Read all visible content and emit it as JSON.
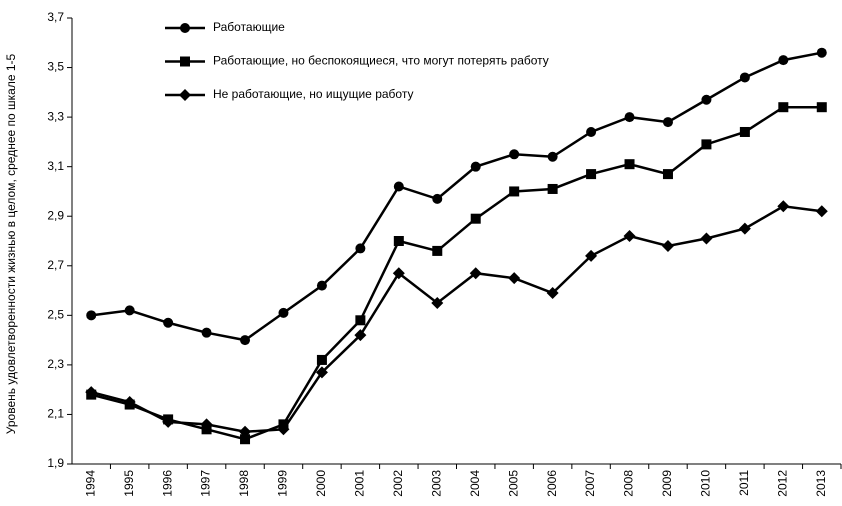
{
  "chart_data": {
    "type": "line",
    "y_label": "Уровень удовлетворенности жизнью в целом, среднее по шкале 1-5",
    "categories": [
      "1994",
      "1995",
      "1996",
      "1997",
      "1998",
      "1999",
      "2000",
      "2001",
      "2002",
      "2003",
      "2004",
      "2005",
      "2006",
      "2007",
      "2008",
      "2009",
      "2010",
      "2011",
      "2012",
      "2013"
    ],
    "series": [
      {
        "name": "Работающие",
        "color": "#000000",
        "marker": "circle",
        "values": [
          2.5,
          2.52,
          2.47,
          2.43,
          2.4,
          2.51,
          2.62,
          2.77,
          3.02,
          2.97,
          3.1,
          3.15,
          3.14,
          3.24,
          3.3,
          3.28,
          3.37,
          3.46,
          3.53,
          3.56
        ]
      },
      {
        "name": "Работающие, но беспокоящиеся, что могут потерять работу",
        "color": "#000000",
        "marker": "square",
        "values": [
          2.18,
          2.14,
          2.08,
          2.04,
          2.0,
          2.06,
          2.32,
          2.48,
          2.8,
          2.76,
          2.89,
          3.0,
          3.01,
          3.07,
          3.11,
          3.07,
          3.19,
          3.24,
          3.34,
          3.34
        ]
      },
      {
        "name": "Не работающие, но ищущие работу",
        "color": "#000000",
        "marker": "diamond",
        "values": [
          2.19,
          2.15,
          2.07,
          2.06,
          2.03,
          2.04,
          2.27,
          2.42,
          2.67,
          2.55,
          2.67,
          2.65,
          2.59,
          2.74,
          2.82,
          2.78,
          2.81,
          2.85,
          2.94,
          2.92
        ]
      }
    ],
    "ylim": [
      1.9,
      3.7
    ],
    "yticks": [
      {
        "value": 1.9,
        "label": "1,9"
      },
      {
        "value": 2.1,
        "label": "2,1"
      },
      {
        "value": 2.3,
        "label": "2,3"
      },
      {
        "value": 2.5,
        "label": "2,5"
      },
      {
        "value": 2.7,
        "label": "2,7"
      },
      {
        "value": 2.9,
        "label": "2,9"
      },
      {
        "value": 3.1,
        "label": "3,1"
      },
      {
        "value": 3.3,
        "label": "3,3"
      },
      {
        "value": 3.5,
        "label": "3,5"
      },
      {
        "value": 3.7,
        "label": "3,7"
      }
    ],
    "legend": "upper left"
  }
}
